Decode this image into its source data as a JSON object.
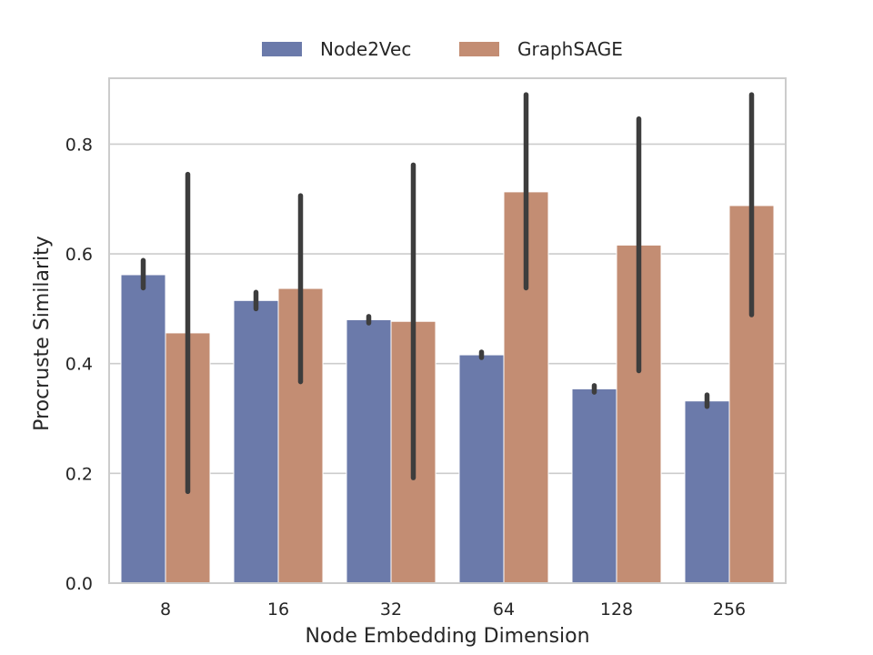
{
  "chart_data": {
    "type": "bar",
    "xlabel": "Node Embedding Dimension",
    "ylabel": "Procruste Similarity",
    "categories": [
      "8",
      "16",
      "32",
      "64",
      "128",
      "256"
    ],
    "ylim": [
      0.0,
      0.92
    ],
    "yticks": [
      0.0,
      0.2,
      0.4,
      0.6,
      0.8
    ],
    "ytick_labels": [
      "0.0",
      "0.2",
      "0.4",
      "0.6",
      "0.8"
    ],
    "grid": "horizontal",
    "legend_position": "top-center",
    "series": [
      {
        "name": "Node2Vec",
        "color": "#6b7aaa",
        "values": [
          0.562,
          0.515,
          0.48,
          0.416,
          0.354,
          0.332
        ],
        "err_low": [
          0.538,
          0.5,
          0.474,
          0.411,
          0.348,
          0.322
        ],
        "err_high": [
          0.588,
          0.53,
          0.486,
          0.421,
          0.36,
          0.343
        ]
      },
      {
        "name": "GraphSAGE",
        "color": "#c38d73",
        "values": [
          0.456,
          0.537,
          0.477,
          0.713,
          0.616,
          0.688
        ],
        "err_low": [
          0.167,
          0.367,
          0.192,
          0.538,
          0.387,
          0.489
        ],
        "err_high": [
          0.745,
          0.706,
          0.762,
          0.89,
          0.846,
          0.89
        ]
      }
    ]
  }
}
